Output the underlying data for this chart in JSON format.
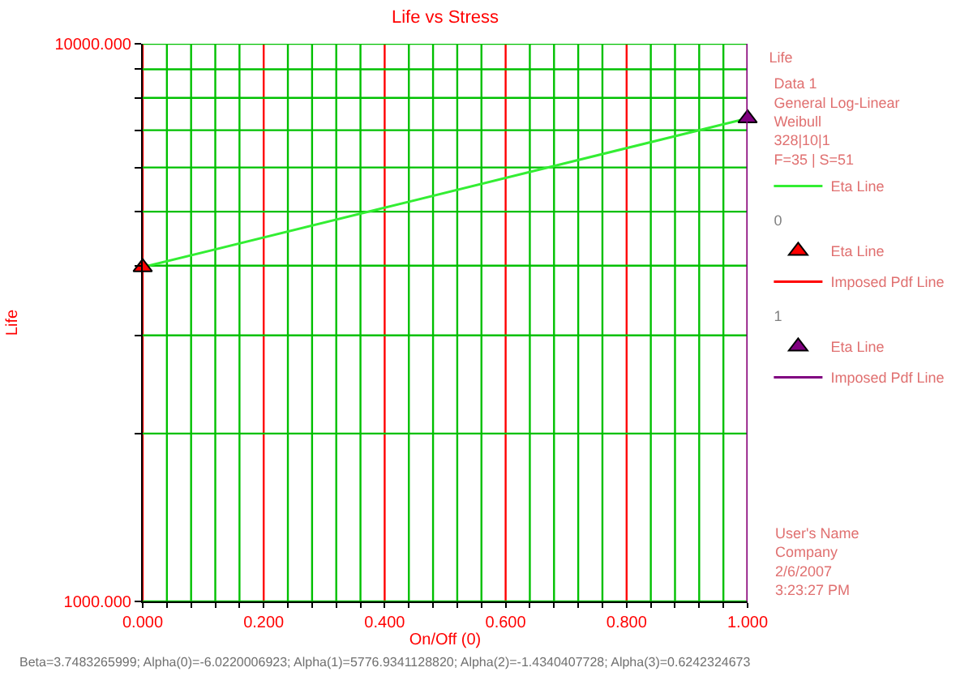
{
  "chart_data": {
    "type": "line",
    "title": "Life vs Stress",
    "xlabel": "On/Off (0)",
    "ylabel": "Life",
    "legend_title": "Life",
    "x": [
      0,
      1
    ],
    "series": [
      {
        "name": "Eta Line",
        "color": "#33ee33",
        "values": [
          3975,
          7350
        ]
      },
      {
        "name": "Eta Line",
        "type": "scatter",
        "marker": "triangle",
        "color": "#ff0000",
        "x": [
          0
        ],
        "values": [
          3975
        ]
      },
      {
        "name": "Imposed Pdf Line",
        "color": "#ff0000",
        "values": [
          null,
          null
        ]
      },
      {
        "name": "Eta Line",
        "type": "scatter",
        "marker": "triangle",
        "color": "#800080",
        "x": [
          1
        ],
        "values": [
          7350
        ]
      },
      {
        "name": "Imposed Pdf Line",
        "color": "#800080",
        "values": [
          null,
          null
        ]
      }
    ],
    "annotations": [
      "Data 1\nGeneral Log-Linear\nWeibull\n328|10|1\nF=35 | S=51",
      "0",
      "1",
      "User's Name\nCompany\n2/6/2007\n3:23:27 PM",
      "Beta=3.7483265999; Alpha(0)=-6.0220006923; Alpha(1)=5776.9341128820; Alpha(2)=-1.4340407728; Alpha(3)=0.6242324673"
    ],
    "ref_lines": [
      {
        "axis": "x",
        "value": 1,
        "color": "#800080"
      }
    ],
    "log": "y",
    "ylim": [
      1000,
      10000
    ],
    "yticks": [
      {
        "value": 1000,
        "label": "1000.000"
      },
      {
        "value": 2000,
        "label": null
      },
      {
        "value": 3000,
        "label": null
      },
      {
        "value": 4000,
        "label": null
      },
      {
        "value": 5000,
        "label": null
      },
      {
        "value": 6000,
        "label": null
      },
      {
        "value": 7000,
        "label": null
      },
      {
        "value": 8000,
        "label": null
      },
      {
        "value": 9000,
        "label": null
      },
      {
        "value": 10000,
        "label": "10000.000"
      }
    ],
    "xlim": [
      0,
      1
    ],
    "xticks": [
      {
        "value": 0,
        "label": "0.000"
      },
      {
        "value": 0.04,
        "label": null
      },
      {
        "value": 0.08,
        "label": null
      },
      {
        "value": 0.12,
        "label": null
      },
      {
        "value": 0.16,
        "label": null
      },
      {
        "value": 0.2,
        "label": "0.200"
      },
      {
        "value": 0.24,
        "label": null
      },
      {
        "value": 0.28,
        "label": null
      },
      {
        "value": 0.32,
        "label": null
      },
      {
        "value": 0.36,
        "label": null
      },
      {
        "value": 0.4,
        "label": "0.400"
      },
      {
        "value": 0.44,
        "label": null
      },
      {
        "value": 0.48,
        "label": null
      },
      {
        "value": 0.52,
        "label": null
      },
      {
        "value": 0.56,
        "label": null
      },
      {
        "value": 0.6,
        "label": "0.600"
      },
      {
        "value": 0.64,
        "label": null
      },
      {
        "value": 0.68,
        "label": null
      },
      {
        "value": 0.72,
        "label": null
      },
      {
        "value": 0.76,
        "label": null
      },
      {
        "value": 0.8,
        "label": "0.800"
      },
      {
        "value": 0.84,
        "label": null
      },
      {
        "value": 0.88,
        "label": null
      },
      {
        "value": 0.92,
        "label": null
      },
      {
        "value": 0.96,
        "label": null
      },
      {
        "value": 1,
        "label": "1.000"
      }
    ],
    "grid": true,
    "legend": "right",
    "marker": "none",
    "line_style": "solid"
  }
}
